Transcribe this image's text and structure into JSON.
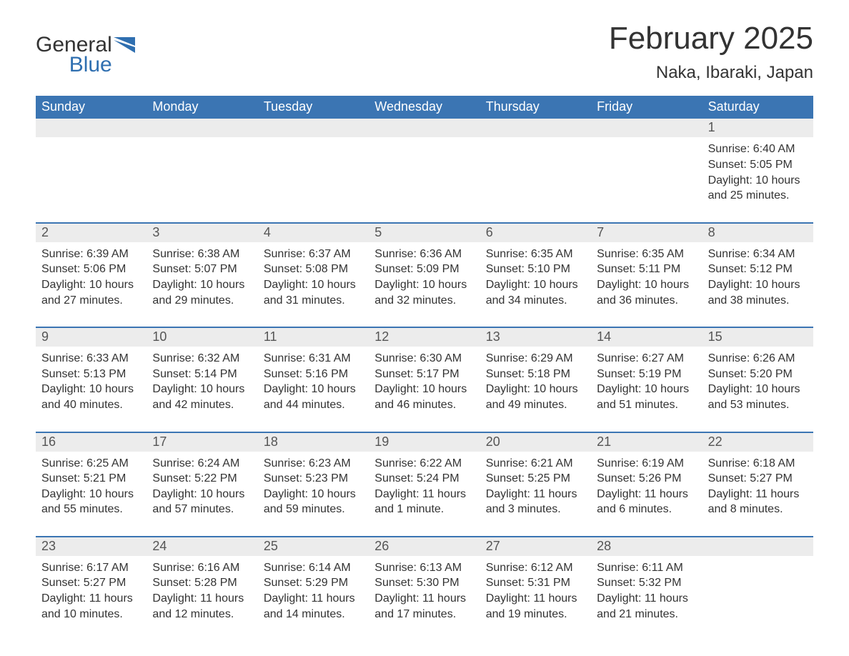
{
  "logo": {
    "general": "General",
    "blue": "Blue"
  },
  "title": "February 2025",
  "location": "Naka, Ibaraki, Japan",
  "colors": {
    "header_bg": "#3b75b3",
    "header_text": "#ffffff",
    "date_bg": "#ececec",
    "border": "#3b75b3",
    "logo_blue": "#2f6fb0",
    "text": "#333333"
  },
  "dayHeaders": [
    "Sunday",
    "Monday",
    "Tuesday",
    "Wednesday",
    "Thursday",
    "Friday",
    "Saturday"
  ],
  "weeks": [
    [
      null,
      null,
      null,
      null,
      null,
      null,
      {
        "date": "1",
        "sunrise": "Sunrise: 6:40 AM",
        "sunset": "Sunset: 5:05 PM",
        "daylight": "Daylight: 10 hours and 25 minutes."
      }
    ],
    [
      {
        "date": "2",
        "sunrise": "Sunrise: 6:39 AM",
        "sunset": "Sunset: 5:06 PM",
        "daylight": "Daylight: 10 hours and 27 minutes."
      },
      {
        "date": "3",
        "sunrise": "Sunrise: 6:38 AM",
        "sunset": "Sunset: 5:07 PM",
        "daylight": "Daylight: 10 hours and 29 minutes."
      },
      {
        "date": "4",
        "sunrise": "Sunrise: 6:37 AM",
        "sunset": "Sunset: 5:08 PM",
        "daylight": "Daylight: 10 hours and 31 minutes."
      },
      {
        "date": "5",
        "sunrise": "Sunrise: 6:36 AM",
        "sunset": "Sunset: 5:09 PM",
        "daylight": "Daylight: 10 hours and 32 minutes."
      },
      {
        "date": "6",
        "sunrise": "Sunrise: 6:35 AM",
        "sunset": "Sunset: 5:10 PM",
        "daylight": "Daylight: 10 hours and 34 minutes."
      },
      {
        "date": "7",
        "sunrise": "Sunrise: 6:35 AM",
        "sunset": "Sunset: 5:11 PM",
        "daylight": "Daylight: 10 hours and 36 minutes."
      },
      {
        "date": "8",
        "sunrise": "Sunrise: 6:34 AM",
        "sunset": "Sunset: 5:12 PM",
        "daylight": "Daylight: 10 hours and 38 minutes."
      }
    ],
    [
      {
        "date": "9",
        "sunrise": "Sunrise: 6:33 AM",
        "sunset": "Sunset: 5:13 PM",
        "daylight": "Daylight: 10 hours and 40 minutes."
      },
      {
        "date": "10",
        "sunrise": "Sunrise: 6:32 AM",
        "sunset": "Sunset: 5:14 PM",
        "daylight": "Daylight: 10 hours and 42 minutes."
      },
      {
        "date": "11",
        "sunrise": "Sunrise: 6:31 AM",
        "sunset": "Sunset: 5:16 PM",
        "daylight": "Daylight: 10 hours and 44 minutes."
      },
      {
        "date": "12",
        "sunrise": "Sunrise: 6:30 AM",
        "sunset": "Sunset: 5:17 PM",
        "daylight": "Daylight: 10 hours and 46 minutes."
      },
      {
        "date": "13",
        "sunrise": "Sunrise: 6:29 AM",
        "sunset": "Sunset: 5:18 PM",
        "daylight": "Daylight: 10 hours and 49 minutes."
      },
      {
        "date": "14",
        "sunrise": "Sunrise: 6:27 AM",
        "sunset": "Sunset: 5:19 PM",
        "daylight": "Daylight: 10 hours and 51 minutes."
      },
      {
        "date": "15",
        "sunrise": "Sunrise: 6:26 AM",
        "sunset": "Sunset: 5:20 PM",
        "daylight": "Daylight: 10 hours and 53 minutes."
      }
    ],
    [
      {
        "date": "16",
        "sunrise": "Sunrise: 6:25 AM",
        "sunset": "Sunset: 5:21 PM",
        "daylight": "Daylight: 10 hours and 55 minutes."
      },
      {
        "date": "17",
        "sunrise": "Sunrise: 6:24 AM",
        "sunset": "Sunset: 5:22 PM",
        "daylight": "Daylight: 10 hours and 57 minutes."
      },
      {
        "date": "18",
        "sunrise": "Sunrise: 6:23 AM",
        "sunset": "Sunset: 5:23 PM",
        "daylight": "Daylight: 10 hours and 59 minutes."
      },
      {
        "date": "19",
        "sunrise": "Sunrise: 6:22 AM",
        "sunset": "Sunset: 5:24 PM",
        "daylight": "Daylight: 11 hours and 1 minute."
      },
      {
        "date": "20",
        "sunrise": "Sunrise: 6:21 AM",
        "sunset": "Sunset: 5:25 PM",
        "daylight": "Daylight: 11 hours and 3 minutes."
      },
      {
        "date": "21",
        "sunrise": "Sunrise: 6:19 AM",
        "sunset": "Sunset: 5:26 PM",
        "daylight": "Daylight: 11 hours and 6 minutes."
      },
      {
        "date": "22",
        "sunrise": "Sunrise: 6:18 AM",
        "sunset": "Sunset: 5:27 PM",
        "daylight": "Daylight: 11 hours and 8 minutes."
      }
    ],
    [
      {
        "date": "23",
        "sunrise": "Sunrise: 6:17 AM",
        "sunset": "Sunset: 5:27 PM",
        "daylight": "Daylight: 11 hours and 10 minutes."
      },
      {
        "date": "24",
        "sunrise": "Sunrise: 6:16 AM",
        "sunset": "Sunset: 5:28 PM",
        "daylight": "Daylight: 11 hours and 12 minutes."
      },
      {
        "date": "25",
        "sunrise": "Sunrise: 6:14 AM",
        "sunset": "Sunset: 5:29 PM",
        "daylight": "Daylight: 11 hours and 14 minutes."
      },
      {
        "date": "26",
        "sunrise": "Sunrise: 6:13 AM",
        "sunset": "Sunset: 5:30 PM",
        "daylight": "Daylight: 11 hours and 17 minutes."
      },
      {
        "date": "27",
        "sunrise": "Sunrise: 6:12 AM",
        "sunset": "Sunset: 5:31 PM",
        "daylight": "Daylight: 11 hours and 19 minutes."
      },
      {
        "date": "28",
        "sunrise": "Sunrise: 6:11 AM",
        "sunset": "Sunset: 5:32 PM",
        "daylight": "Daylight: 11 hours and 21 minutes."
      },
      null
    ]
  ]
}
